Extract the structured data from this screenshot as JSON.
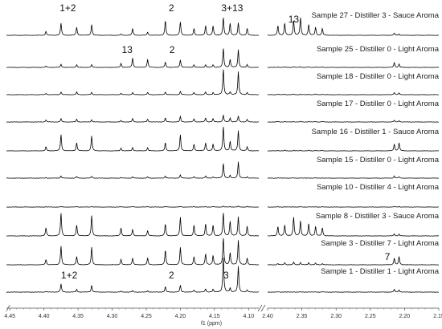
{
  "chart_data": {
    "type": "line",
    "xlabel": "f1 (ppm)",
    "x_axis_break": true,
    "panels": [
      {
        "name": "left",
        "xlim": [
          4.455,
          4.085
        ],
        "ticks": [
          4.45,
          4.4,
          4.35,
          4.3,
          4.25,
          4.2,
          4.15,
          4.1
        ],
        "tick_labels": [
          "4.45",
          "4.40",
          "4.35",
          "4.30",
          "4.25",
          "4.20",
          "4.15",
          "4.10"
        ],
        "peak_positions_ppm": [
          4.397,
          4.375,
          4.352,
          4.33,
          4.287,
          4.27,
          4.248,
          4.222,
          4.2,
          4.18,
          4.163,
          4.152,
          4.137,
          4.127,
          4.115,
          4.102
        ]
      },
      {
        "name": "right",
        "xlim": [
          2.4,
          2.15
        ],
        "ticks": [
          2.4,
          2.35,
          2.3,
          2.25,
          2.2,
          2.15
        ],
        "tick_labels": [
          "2.40",
          "2.35",
          "2.30",
          "2.25",
          "2.20",
          "2.15"
        ],
        "peak_positions_ppm": [
          2.385,
          2.375,
          2.362,
          2.352,
          2.34,
          2.33,
          2.32,
          2.215,
          2.208
        ]
      }
    ],
    "series": [
      {
        "name": "Sample 27 - Distiller 3 - Sauce Aroma",
        "left_heights": [
          0.15,
          0.45,
          0.3,
          0.4,
          0.05,
          0.25,
          0.12,
          0.55,
          0.5,
          0.25,
          0.35,
          0.35,
          0.65,
          0.45,
          0.45,
          0.25
        ],
        "right_heights": [
          0.35,
          0.45,
          0.55,
          0.65,
          0.4,
          0.3,
          0.25,
          0.08,
          0.05
        ]
      },
      {
        "name": "Sample 25 - Distiller 0 - Light Aroma",
        "left_heights": [
          0.05,
          0.12,
          0.1,
          0.1,
          0.15,
          0.35,
          0.3,
          0.2,
          0.28,
          0.1,
          0.1,
          0.1,
          0.7,
          0.3,
          0.65,
          0.1
        ],
        "right_heights": [
          0.02,
          0.02,
          0.03,
          0.03,
          0.02,
          0.02,
          0.02,
          0.18,
          0.12
        ]
      },
      {
        "name": "Sample 18 - Distiller 0 - Light Aroma",
        "left_heights": [
          0.05,
          0.1,
          0.1,
          0.08,
          0.05,
          0.08,
          0.08,
          0.1,
          0.12,
          0.08,
          0.1,
          0.08,
          0.95,
          0.1,
          0.85,
          0.08
        ],
        "right_heights": [
          0.02,
          0.02,
          0.02,
          0.02,
          0.02,
          0.02,
          0.02,
          0.08,
          0.06
        ]
      },
      {
        "name": "Sample 17 - Distiller 0 - Light Aroma",
        "left_heights": [
          0.08,
          0.12,
          0.1,
          0.08,
          0.05,
          0.12,
          0.1,
          0.15,
          0.2,
          0.12,
          0.15,
          0.12,
          0.25,
          0.15,
          0.22,
          0.1
        ],
        "right_heights": [
          0.02,
          0.02,
          0.02,
          0.02,
          0.02,
          0.02,
          0.02,
          0.06,
          0.05
        ]
      },
      {
        "name": "Sample 16 - Distiller 1 - Sauce Aroma",
        "left_heights": [
          0.15,
          0.6,
          0.3,
          0.55,
          0.1,
          0.12,
          0.12,
          0.3,
          0.6,
          0.25,
          0.3,
          0.25,
          0.9,
          0.35,
          0.75,
          0.15
        ],
        "right_heights": [
          0.02,
          0.02,
          0.02,
          0.02,
          0.02,
          0.02,
          0.02,
          0.25,
          0.3
        ]
      },
      {
        "name": "Sample 15 - Distiller 0 - Light Aroma",
        "left_heights": [
          0.02,
          0.08,
          0.06,
          0.07,
          0.02,
          0.05,
          0.05,
          0.08,
          0.12,
          0.05,
          0.08,
          0.05,
          0.55,
          0.1,
          0.6,
          0.05
        ],
        "right_heights": [
          0.01,
          0.01,
          0.01,
          0.01,
          0.01,
          0.01,
          0.01,
          0.08,
          0.05
        ]
      },
      {
        "name": "Sample 10 - Distiller 4 - Light Aroma",
        "left_heights": [
          0.01,
          0.02,
          0.02,
          0.02,
          0.01,
          0.02,
          0.02,
          0.02,
          0.02,
          0.02,
          0.02,
          0.02,
          0.03,
          0.02,
          0.03,
          0.02
        ],
        "right_heights": [
          0.01,
          0.01,
          0.01,
          0.01,
          0.01,
          0.01,
          0.01,
          0.02,
          0.02
        ]
      },
      {
        "name": "Sample 8 - Distiller 3 - Sauce Aroma",
        "left_heights": [
          0.3,
          0.85,
          0.4,
          0.75,
          0.3,
          0.25,
          0.2,
          0.45,
          0.7,
          0.4,
          0.45,
          0.4,
          0.85,
          0.55,
          0.7,
          0.35
        ],
        "right_heights": [
          0.35,
          0.4,
          0.7,
          0.55,
          0.45,
          0.35,
          0.3,
          0.08,
          0.06
        ]
      },
      {
        "name": "Sample 3 - Distiller 7 - Light Aroma",
        "left_heights": [
          0.2,
          0.7,
          0.3,
          0.65,
          0.2,
          0.25,
          0.25,
          0.55,
          0.65,
          0.3,
          0.4,
          0.35,
          1.0,
          0.45,
          0.9,
          0.25
        ],
        "right_heights": [
          0.05,
          0.08,
          0.1,
          0.08,
          0.08,
          0.06,
          0.05,
          0.25,
          0.3
        ]
      },
      {
        "name": "Sample 1 - Distiller 1 - Light Aroma",
        "left_heights": [
          0.03,
          0.3,
          0.1,
          0.25,
          0.03,
          0.05,
          0.05,
          0.2,
          0.25,
          0.08,
          0.12,
          0.1,
          1.3,
          0.15,
          0.95,
          0.08
        ],
        "right_heights": [
          0.01,
          0.01,
          0.01,
          0.01,
          0.01,
          0.01,
          0.01,
          0.1,
          0.08
        ]
      }
    ],
    "annotations": [
      {
        "text": "1+2",
        "series": 0,
        "ppm": 4.365,
        "panel": "left"
      },
      {
        "text": "2",
        "series": 0,
        "ppm": 4.213,
        "panel": "left"
      },
      {
        "text": "3+13",
        "series": 0,
        "ppm": 4.124,
        "panel": "left"
      },
      {
        "text": "13",
        "series": 0,
        "ppm": 2.362,
        "panel": "right"
      },
      {
        "text": "13",
        "series": 1,
        "ppm": 4.278,
        "panel": "left"
      },
      {
        "text": "2",
        "series": 1,
        "ppm": 4.212,
        "panel": "left"
      },
      {
        "text": "7",
        "series": 8,
        "ppm": 2.225,
        "panel": "right"
      },
      {
        "text": "1+2",
        "series": 9,
        "ppm": 4.363,
        "panel": "left"
      },
      {
        "text": "2",
        "series": 9,
        "ppm": 4.213,
        "panel": "left"
      },
      {
        "text": "3",
        "series": 9,
        "ppm": 4.133,
        "panel": "left"
      }
    ]
  }
}
